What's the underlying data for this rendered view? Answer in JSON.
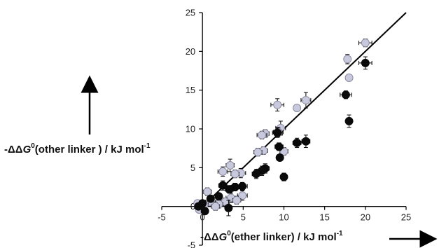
{
  "chart_data": {
    "type": "scatter",
    "title": "",
    "xlabel": {
      "prefix": "-ΔΔ",
      "symbol": "G",
      "sup0": "0",
      "main": "(ether linker) / kJ mol",
      "sup1": "-1"
    },
    "ylabel": {
      "prefix": "-ΔΔ",
      "symbol": "G",
      "sup0": "0",
      "main": "(other linker ) / kJ mol",
      "sup1": "-1"
    },
    "xlim": [
      -5,
      25
    ],
    "ylim": [
      -5,
      25
    ],
    "xticks": [
      -5,
      0,
      5,
      10,
      15,
      20,
      25
    ],
    "yticks": [
      -5,
      0,
      5,
      10,
      15,
      20,
      25
    ],
    "grid": false,
    "legend": "none",
    "reference_line": {
      "x": [
        0,
        25
      ],
      "y": [
        0,
        25
      ]
    },
    "colors": {
      "black": "#0a0a0a",
      "grey_fill": "#c9c9dd",
      "grey_edge": "#8a8aa0",
      "line": "#000000"
    },
    "series": [
      {
        "marker": "grey",
        "points": [
          {
            "x": 20.0,
            "y": 21.1,
            "xe": 0.8,
            "ye": 0.5
          },
          {
            "x": 17.8,
            "y": 19.0,
            "xe": 0.4,
            "ye": 0.6
          },
          {
            "x": 18.0,
            "y": 16.6,
            "xe": 0.3,
            "ye": 0.4
          },
          {
            "x": 12.7,
            "y": 13.7,
            "xe": 0.6,
            "ye": 1.0
          },
          {
            "x": 9.2,
            "y": 13.1,
            "xe": 0.8,
            "ye": 0.8
          },
          {
            "x": 11.6,
            "y": 12.7,
            "xe": 0.3,
            "ye": 0.3
          },
          {
            "x": 9.6,
            "y": 10.1,
            "xe": 0.6,
            "ye": 0.9
          },
          {
            "x": 9.3,
            "y": 9.6,
            "xe": 0.6,
            "ye": 0.6
          },
          {
            "x": 7.7,
            "y": 9.4,
            "xe": 0.5,
            "ye": 0.5
          },
          {
            "x": 7.3,
            "y": 9.2,
            "xe": 0.6,
            "ye": 0.5
          },
          {
            "x": 10.0,
            "y": 7.1,
            "xe": 0.5,
            "ye": 0.5
          },
          {
            "x": 7.5,
            "y": 7.2,
            "xe": 0.5,
            "ye": 0.5
          },
          {
            "x": 6.8,
            "y": 7.0,
            "xe": 0.5,
            "ye": 0.5
          },
          {
            "x": 3.4,
            "y": 5.3,
            "xe": 0.5,
            "ye": 0.8
          },
          {
            "x": 2.5,
            "y": 4.5,
            "xe": 0.6,
            "ye": 0.6
          },
          {
            "x": 4.7,
            "y": 4.3,
            "xe": 0.6,
            "ye": 0.6
          },
          {
            "x": 4.0,
            "y": 4.2,
            "xe": 0.5,
            "ye": 0.5
          },
          {
            "x": 0.6,
            "y": 1.9,
            "xe": 0.5,
            "ye": 0.5
          },
          {
            "x": 4.9,
            "y": 1.4,
            "xe": 0.6,
            "ye": 0.6
          },
          {
            "x": 3.5,
            "y": 1.1,
            "xe": 0.6,
            "ye": 0.6
          },
          {
            "x": 2.8,
            "y": 0.6,
            "xe": 0.5,
            "ye": 0.5
          },
          {
            "x": 2.0,
            "y": 0.3,
            "xe": 0.5,
            "ye": 0.5
          },
          {
            "x": 1.0,
            "y": 0.6,
            "xe": 0.6,
            "ye": 0.6
          },
          {
            "x": 0.2,
            "y": 0.2,
            "xe": 0.5,
            "ye": 0.5
          },
          {
            "x": -0.6,
            "y": 0.4,
            "xe": 0.4,
            "ye": 0.4
          },
          {
            "x": -0.4,
            "y": -0.4,
            "xe": 0.4,
            "ye": 0.4
          },
          {
            "x": 1.6,
            "y": 0.0,
            "xe": 0.5,
            "ye": 0.5
          },
          {
            "x": 4.2,
            "y": 0.8,
            "xe": 0.5,
            "ye": 0.5
          }
        ]
      },
      {
        "marker": "black",
        "points": [
          {
            "x": 20.0,
            "y": 18.5,
            "xe": 0.8,
            "ye": 0.8
          },
          {
            "x": 17.6,
            "y": 14.4,
            "xe": 0.7,
            "ye": 0.5
          },
          {
            "x": 18.0,
            "y": 11.0,
            "xe": 0.3,
            "ye": 0.8
          },
          {
            "x": 12.7,
            "y": 8.4,
            "xe": 0.5,
            "ye": 0.8
          },
          {
            "x": 11.6,
            "y": 8.2,
            "xe": 0.5,
            "ye": 0.6
          },
          {
            "x": 9.2,
            "y": 9.5,
            "xe": 0.6,
            "ye": 0.6
          },
          {
            "x": 9.4,
            "y": 7.7,
            "xe": 0.5,
            "ye": 0.5
          },
          {
            "x": 9.5,
            "y": 6.3,
            "xe": 0.4,
            "ye": 0.4
          },
          {
            "x": 10.0,
            "y": 3.8,
            "xe": 0.4,
            "ye": 0.5
          },
          {
            "x": 7.7,
            "y": 4.9,
            "xe": 0.5,
            "ye": 0.6
          },
          {
            "x": 7.3,
            "y": 4.6,
            "xe": 0.6,
            "ye": 0.6
          },
          {
            "x": 6.6,
            "y": 4.2,
            "xe": 0.5,
            "ye": 0.6
          },
          {
            "x": 4.9,
            "y": 2.6,
            "xe": 0.6,
            "ye": 0.5
          },
          {
            "x": 4.0,
            "y": 2.5,
            "xe": 0.5,
            "ye": 0.5
          },
          {
            "x": 3.3,
            "y": 2.2,
            "xe": 0.5,
            "ye": 0.5
          },
          {
            "x": 2.5,
            "y": 2.7,
            "xe": 0.5,
            "ye": 0.6
          },
          {
            "x": 3.2,
            "y": -0.2,
            "xe": 0.4,
            "ye": 1.0
          },
          {
            "x": 2.0,
            "y": 1.3,
            "xe": 0.4,
            "ye": 0.4
          },
          {
            "x": 1.0,
            "y": 1.0,
            "xe": 0.4,
            "ye": 0.4
          },
          {
            "x": 0.3,
            "y": -0.6,
            "xe": 0.4,
            "ye": 0.4
          },
          {
            "x": -0.5,
            "y": 0.0,
            "xe": 0.4,
            "ye": 0.4
          },
          {
            "x": 0.0,
            "y": 0.4,
            "xe": 0.4,
            "ye": 0.4
          }
        ]
      }
    ]
  }
}
